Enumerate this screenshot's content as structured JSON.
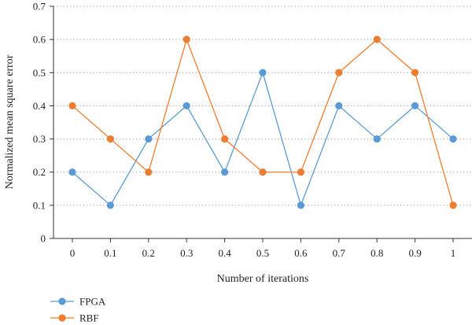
{
  "chart_data": {
    "type": "line",
    "title": "",
    "xlabel": "Number of iterations",
    "ylabel": "Normalized mean square error",
    "x": [
      0,
      0.1,
      0.2,
      0.3,
      0.4,
      0.5,
      0.6,
      0.7,
      0.8,
      0.9,
      1
    ],
    "x_tick_labels": [
      "0",
      "0.1",
      "0.2",
      "0.3",
      "0.4",
      "0.5",
      "0.6",
      "0.7",
      "0.8",
      "0.9",
      "1"
    ],
    "y_tick_labels": [
      "0",
      "0.1",
      "0.2",
      "0.3",
      "0.4",
      "0.5",
      "0.6",
      "0.7"
    ],
    "xlim": [
      0,
      1
    ],
    "ylim": [
      0,
      0.7
    ],
    "grid": "horizontal dotted",
    "legend_position": "bottom-left",
    "series": [
      {
        "name": "FPGA",
        "color": "#5b9bd5",
        "values": [
          0.2,
          0.1,
          0.3,
          0.4,
          0.2,
          0.5,
          0.1,
          0.4,
          0.3,
          0.4,
          0.3
        ]
      },
      {
        "name": "RBF",
        "color": "#ed7d31",
        "values": [
          0.4,
          0.3,
          0.2,
          0.6,
          0.3,
          0.2,
          0.2,
          0.5,
          0.6,
          0.5,
          0.1
        ]
      }
    ]
  }
}
